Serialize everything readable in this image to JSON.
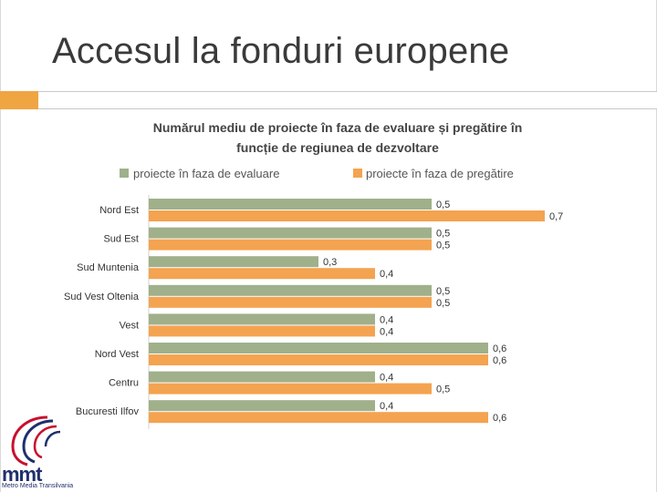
{
  "slide": {
    "title": "Accesul la fonduri europene"
  },
  "colors": {
    "series_evaluare": "#a0b08a",
    "series_pregatire": "#f4a350",
    "text": "#333333",
    "logo": "#1f2f6e",
    "logo_accent": "#c8102e",
    "accent": "#f0a543"
  },
  "logo": {
    "text": "mmt",
    "subtitle": "Metro Media Transilvania",
    "icon": "head-profile-icon"
  },
  "chart_data": {
    "type": "bar",
    "orientation": "horizontal",
    "title": "Numărul mediu de proiecte în faza de evaluare și pregătire în funcție de regiunea de dezvoltare",
    "title_lines": [
      "Numărul mediu de proiecte în faza de evaluare și pregătire în",
      "funcție de regiunea de dezvoltare"
    ],
    "legend_position": "top",
    "grid": false,
    "xlim": [
      0,
      0.8
    ],
    "categories": [
      "Nord Est",
      "Sud Est",
      "Sud Muntenia",
      "Sud Vest Oltenia",
      "Vest",
      "Nord Vest",
      "Centru",
      "Bucuresti Ilfov"
    ],
    "series": [
      {
        "name": "proiecte în faza de evaluare",
        "values": [
          0.5,
          0.5,
          0.3,
          0.5,
          0.4,
          0.6,
          0.4,
          0.4
        ],
        "labels": [
          "0,5",
          "0,5",
          "0,3",
          "0,5",
          "0,4",
          "0,6",
          "0,4",
          "0,4"
        ]
      },
      {
        "name": "proiecte în faza de pregătire",
        "values": [
          0.7,
          0.5,
          0.4,
          0.5,
          0.4,
          0.6,
          0.5,
          0.6
        ],
        "labels": [
          "0,7",
          "0,5",
          "0,4",
          "0,5",
          "0,4",
          "0,6",
          "0,5",
          "0,6"
        ]
      }
    ]
  }
}
